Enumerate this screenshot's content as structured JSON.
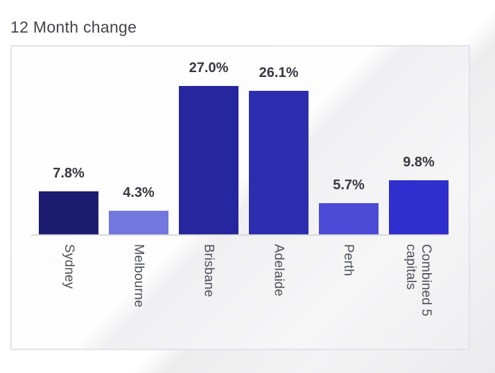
{
  "page_title": "12 Month change",
  "chart_data": {
    "type": "bar",
    "title": "12 Month change",
    "categories": [
      "Sydney",
      "Melbourne",
      "Brisbane",
      "Adelaide",
      "Perth",
      "Combined 5 capitals"
    ],
    "values": [
      7.8,
      4.3,
      27.0,
      26.1,
      5.7,
      9.8
    ],
    "value_labels": [
      "7.8%",
      "4.3%",
      "27.0%",
      "26.1%",
      "5.7%",
      "9.8%"
    ],
    "bar_colors": [
      "#1c1c70",
      "#7277de",
      "#26269e",
      "#2d2db0",
      "#4b4bd7",
      "#2f2fce"
    ],
    "xlabel": "",
    "ylabel": "",
    "ylim": [
      0,
      30
    ],
    "grid": false,
    "legend": "none",
    "category_label_rotation_deg": 90,
    "axis_line_color": "#d9d9d9"
  },
  "colors": {
    "title_text": "#42444b",
    "value_label_text": "#36383e",
    "category_label_text": "#4d4f57",
    "card_border": "#e2e3e9",
    "baseline": "#d9d9d9"
  }
}
